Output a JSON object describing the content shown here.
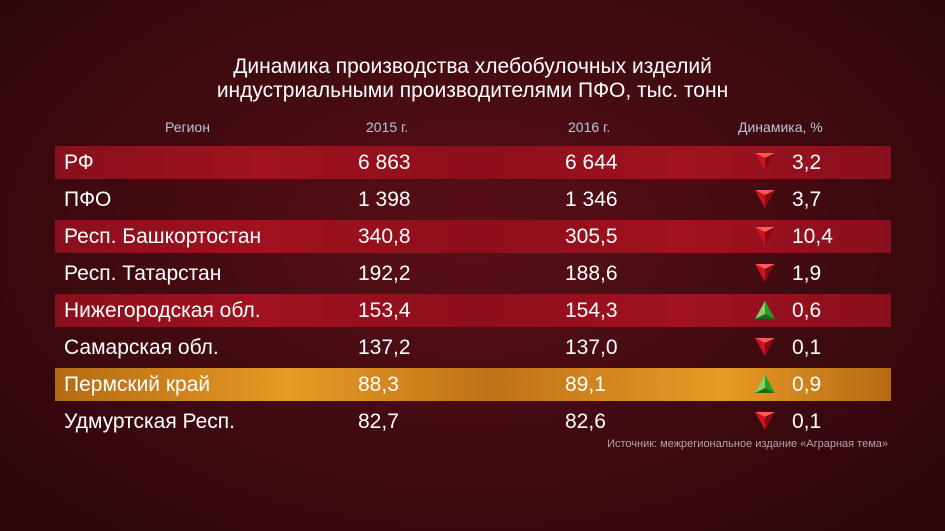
{
  "chart_data": {
    "type": "table",
    "title_lines": [
      "Динамика производства хлебобулочных изделий",
      "индустриальными производителями ПФО, тыс. тонн"
    ],
    "columns": [
      "Регион",
      "2015 г.",
      "2016 г.",
      "Динамика, %"
    ],
    "rows": [
      {
        "region": "РФ",
        "y2015": "6 863",
        "y2016": "6 644",
        "trend": "down",
        "change": "3,2"
      },
      {
        "region": "ПФО",
        "y2015": "1 398",
        "y2016": "1 346",
        "trend": "down",
        "change": "3,7"
      },
      {
        "region": "Респ. Башкортостан",
        "y2015": "340,8",
        "y2016": "305,5",
        "trend": "down",
        "change": "10,4"
      },
      {
        "region": "Респ. Татарстан",
        "y2015": "192,2",
        "y2016": "188,6",
        "trend": "down",
        "change": "1,9"
      },
      {
        "region": "Нижегородская обл.",
        "y2015": "153,4",
        "y2016": "154,3",
        "trend": "up",
        "change": "0,6"
      },
      {
        "region": "Самарская обл.",
        "y2015": "137,2",
        "y2016": "137,0",
        "trend": "down",
        "change": "0,1"
      },
      {
        "region": "Пермский край",
        "y2015": "88,3",
        "y2016": "89,1",
        "trend": "up",
        "change": "0,9"
      },
      {
        "region": "Удмуртская Респ.",
        "y2015": "82,7",
        "y2016": "82,6",
        "trend": "down",
        "change": "0,1"
      }
    ],
    "highlighted_row": "Пермский край",
    "source": "Источник: межрегиональное издание «Аграрная тема»"
  },
  "colors": {
    "background": "#3e0a10",
    "stripe": "#9a111e",
    "highlight": "#e0921f",
    "arrow_down": "#d0121e",
    "arrow_up": "#2f9a2a",
    "header_text": "#b9c5d8"
  }
}
